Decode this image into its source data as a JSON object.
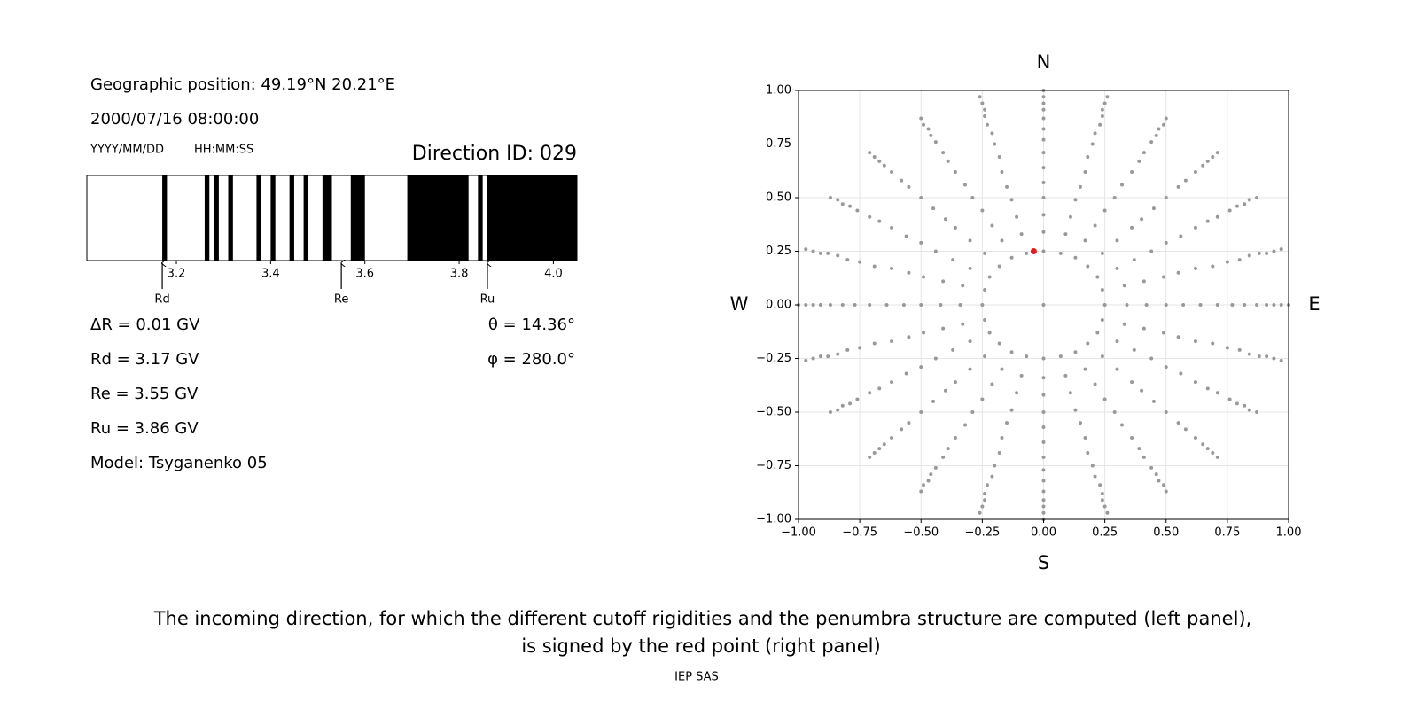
{
  "info": {
    "position": "Geographic position: 49.19°N 20.21°E",
    "datetime": "2000/07/16 08:00:00",
    "date_format": "YYYY/MM/DD",
    "time_format": "HH:MM:SS",
    "direction": "Direction ID: 029",
    "delta_r": "ΔR = 0.01 GV",
    "rd": "Rd = 3.17 GV",
    "re": "Re = 3.55 GV",
    "ru": "Ru = 3.86 GV",
    "model": "Model: Tsyganenko 05",
    "theta": "θ = 14.36°",
    "phi": "φ = 280.0°"
  },
  "chart_data": [
    {
      "type": "penumbra",
      "xlim": [
        3.01,
        4.05
      ],
      "xticks": [
        3.2,
        3.4,
        3.6,
        3.8,
        {
          "value": 4.0,
          "label": "4.0"
        }
      ],
      "band_color": "#000000",
      "bands": [
        [
          3.17,
          3.18
        ],
        [
          3.26,
          3.27
        ],
        [
          3.28,
          3.29
        ],
        [
          3.31,
          3.32
        ],
        [
          3.37,
          3.38
        ],
        [
          3.4,
          3.41
        ],
        [
          3.44,
          3.45
        ],
        [
          3.47,
          3.48
        ],
        [
          3.51,
          3.53
        ],
        [
          3.57,
          3.6
        ],
        [
          3.69,
          3.82
        ],
        [
          3.84,
          3.85
        ],
        [
          3.86,
          4.05
        ]
      ],
      "markers": [
        {
          "label": "Rd",
          "value": 3.17
        },
        {
          "label": "Re",
          "value": 3.55
        },
        {
          "label": "Ru",
          "value": 3.86
        }
      ]
    },
    {
      "type": "scatter",
      "xlim": [
        -1,
        1
      ],
      "ylim": [
        -1,
        1
      ],
      "grid": true,
      "xticks": [
        {
          "value": -1,
          "label": "−1.00"
        },
        {
          "value": -0.75,
          "label": "−0.75"
        },
        {
          "value": -0.5,
          "label": "−0.50"
        },
        {
          "value": -0.25,
          "label": "−0.25"
        },
        {
          "value": 0,
          "label": "0.00"
        },
        {
          "value": 0.25,
          "label": "0.25"
        },
        {
          "value": 0.5,
          "label": "0.50"
        },
        {
          "value": 0.75,
          "label": "0.75"
        },
        {
          "value": 1,
          "label": "1.00"
        }
      ],
      "yticks": [
        {
          "value": -1,
          "label": "−1.00"
        },
        {
          "value": -0.75,
          "label": "−0.75"
        },
        {
          "value": -0.5,
          "label": "−0.50"
        },
        {
          "value": -0.25,
          "label": "−0.25"
        },
        {
          "value": 0,
          "label": "0.00"
        },
        {
          "value": 0.25,
          "label": "0.25"
        },
        {
          "value": 0.5,
          "label": "0.50"
        },
        {
          "value": 0.75,
          "label": "0.75"
        },
        {
          "value": 1,
          "label": "1.00"
        }
      ],
      "compass": {
        "north": "N",
        "south": "S",
        "west": "W",
        "east": "E"
      },
      "point_color": "#999999",
      "highlight": {
        "x": -0.04,
        "y": 0.25,
        "color": "#e8191c"
      },
      "series": [
        {
          "x": [
            0
          ],
          "y": [
            0
          ]
        },
        {
          "x": [
            0,
            0,
            0,
            0,
            0,
            0,
            0,
            0,
            0,
            0,
            0,
            0,
            0,
            0
          ],
          "y": [
            0.25,
            0.34,
            0.42,
            0.5,
            0.57,
            0.64,
            0.71,
            0.77,
            0.82,
            0.87,
            0.91,
            0.94,
            0.97,
            1
          ]
        },
        {
          "x": [
            0.07,
            0.09,
            0.11,
            0.13,
            0.15,
            0.17,
            0.18,
            0.2,
            0.21,
            0.23,
            0.24,
            0.24,
            0.25,
            0.26
          ],
          "y": [
            0.24,
            0.33,
            0.41,
            0.49,
            0.55,
            0.62,
            0.69,
            0.75,
            0.8,
            0.84,
            0.88,
            0.91,
            0.94,
            0.97
          ]
        },
        {
          "x": [
            0.13,
            0.17,
            0.21,
            0.25,
            0.29,
            0.32,
            0.36,
            0.39,
            0.41,
            0.44,
            0.46,
            0.47,
            0.49,
            0.5
          ],
          "y": [
            0.22,
            0.3,
            0.37,
            0.44,
            0.5,
            0.56,
            0.62,
            0.67,
            0.71,
            0.76,
            0.79,
            0.82,
            0.84,
            0.87
          ]
        },
        {
          "x": [
            0.18,
            0.24,
            0.3,
            0.36,
            0.4,
            0.45,
            0.5,
            0.55,
            0.58,
            0.62,
            0.65,
            0.67,
            0.69,
            0.71
          ],
          "y": [
            0.18,
            0.24,
            0.3,
            0.36,
            0.4,
            0.45,
            0.5,
            0.55,
            0.58,
            0.62,
            0.65,
            0.67,
            0.69,
            0.71
          ]
        },
        {
          "x": [
            0.22,
            0.3,
            0.37,
            0.44,
            0.5,
            0.56,
            0.62,
            0.67,
            0.71,
            0.76,
            0.79,
            0.82,
            0.84,
            0.87
          ],
          "y": [
            0.13,
            0.17,
            0.21,
            0.25,
            0.29,
            0.32,
            0.36,
            0.39,
            0.41,
            0.44,
            0.46,
            0.47,
            0.49,
            0.5
          ]
        },
        {
          "x": [
            0.24,
            0.33,
            0.41,
            0.49,
            0.55,
            0.62,
            0.69,
            0.75,
            0.8,
            0.84,
            0.88,
            0.91,
            0.94,
            0.97
          ],
          "y": [
            0.07,
            0.09,
            0.11,
            0.13,
            0.15,
            0.17,
            0.18,
            0.2,
            0.21,
            0.23,
            0.24,
            0.24,
            0.25,
            0.26
          ]
        },
        {
          "x": [
            0.25,
            0.34,
            0.42,
            0.5,
            0.57,
            0.64,
            0.71,
            0.77,
            0.82,
            0.87,
            0.91,
            0.94,
            0.97,
            1
          ],
          "y": [
            0,
            0,
            0,
            0,
            0,
            0,
            0,
            0,
            0,
            0,
            0,
            0,
            0,
            0
          ]
        },
        {
          "x": [
            0.24,
            0.33,
            0.41,
            0.49,
            0.55,
            0.62,
            0.69,
            0.75,
            0.8,
            0.84,
            0.88,
            0.91,
            0.94,
            0.97
          ],
          "y": [
            -0.07,
            -0.09,
            -0.11,
            -0.13,
            -0.15,
            -0.17,
            -0.18,
            -0.2,
            -0.21,
            -0.23,
            -0.24,
            -0.24,
            -0.25,
            -0.26
          ]
        },
        {
          "x": [
            0.22,
            0.3,
            0.37,
            0.44,
            0.5,
            0.56,
            0.62,
            0.67,
            0.71,
            0.76,
            0.79,
            0.82,
            0.84,
            0.87
          ],
          "y": [
            -0.13,
            -0.17,
            -0.21,
            -0.25,
            -0.29,
            -0.32,
            -0.36,
            -0.39,
            -0.41,
            -0.44,
            -0.46,
            -0.47,
            -0.49,
            -0.5
          ]
        },
        {
          "x": [
            0.18,
            0.24,
            0.3,
            0.36,
            0.4,
            0.45,
            0.5,
            0.55,
            0.58,
            0.62,
            0.65,
            0.67,
            0.69,
            0.71
          ],
          "y": [
            -0.18,
            -0.24,
            -0.3,
            -0.36,
            -0.4,
            -0.45,
            -0.5,
            -0.55,
            -0.58,
            -0.62,
            -0.65,
            -0.67,
            -0.69,
            -0.71
          ]
        },
        {
          "x": [
            0.13,
            0.17,
            0.21,
            0.25,
            0.29,
            0.32,
            0.36,
            0.39,
            0.41,
            0.44,
            0.46,
            0.47,
            0.49,
            0.5
          ],
          "y": [
            -0.22,
            -0.3,
            -0.37,
            -0.44,
            -0.5,
            -0.56,
            -0.62,
            -0.67,
            -0.71,
            -0.76,
            -0.79,
            -0.82,
            -0.84,
            -0.87
          ]
        },
        {
          "x": [
            0.07,
            0.09,
            0.11,
            0.13,
            0.15,
            0.17,
            0.18,
            0.2,
            0.21,
            0.23,
            0.24,
            0.24,
            0.25,
            0.26
          ],
          "y": [
            -0.24,
            -0.33,
            -0.41,
            -0.49,
            -0.55,
            -0.62,
            -0.69,
            -0.75,
            -0.8,
            -0.84,
            -0.88,
            -0.91,
            -0.94,
            -0.97
          ]
        },
        {
          "x": [
            0,
            0,
            0,
            0,
            0,
            0,
            0,
            0,
            0,
            0,
            0,
            0,
            0,
            0
          ],
          "y": [
            -0.25,
            -0.34,
            -0.42,
            -0.5,
            -0.57,
            -0.64,
            -0.71,
            -0.77,
            -0.82,
            -0.87,
            -0.91,
            -0.94,
            -0.97,
            -1
          ]
        },
        {
          "x": [
            -0.07,
            -0.09,
            -0.11,
            -0.13,
            -0.15,
            -0.17,
            -0.18,
            -0.2,
            -0.21,
            -0.23,
            -0.24,
            -0.24,
            -0.25,
            -0.26
          ],
          "y": [
            -0.24,
            -0.33,
            -0.41,
            -0.49,
            -0.55,
            -0.62,
            -0.69,
            -0.75,
            -0.8,
            -0.84,
            -0.88,
            -0.91,
            -0.94,
            -0.97
          ]
        },
        {
          "x": [
            -0.13,
            -0.17,
            -0.21,
            -0.25,
            -0.29,
            -0.32,
            -0.36,
            -0.39,
            -0.41,
            -0.44,
            -0.46,
            -0.47,
            -0.49,
            -0.5
          ],
          "y": [
            -0.22,
            -0.3,
            -0.37,
            -0.44,
            -0.5,
            -0.56,
            -0.62,
            -0.67,
            -0.71,
            -0.76,
            -0.79,
            -0.82,
            -0.84,
            -0.87
          ]
        },
        {
          "x": [
            -0.18,
            -0.24,
            -0.3,
            -0.36,
            -0.4,
            -0.45,
            -0.5,
            -0.55,
            -0.58,
            -0.62,
            -0.65,
            -0.67,
            -0.69,
            -0.71
          ],
          "y": [
            -0.18,
            -0.24,
            -0.3,
            -0.36,
            -0.4,
            -0.45,
            -0.5,
            -0.55,
            -0.58,
            -0.62,
            -0.65,
            -0.67,
            -0.69,
            -0.71
          ]
        },
        {
          "x": [
            -0.22,
            -0.3,
            -0.37,
            -0.44,
            -0.5,
            -0.56,
            -0.62,
            -0.67,
            -0.71,
            -0.76,
            -0.79,
            -0.82,
            -0.84,
            -0.87
          ],
          "y": [
            -0.13,
            -0.17,
            -0.21,
            -0.25,
            -0.29,
            -0.32,
            -0.36,
            -0.39,
            -0.41,
            -0.44,
            -0.46,
            -0.47,
            -0.49,
            -0.5
          ]
        },
        {
          "x": [
            -0.24,
            -0.33,
            -0.41,
            -0.49,
            -0.55,
            -0.62,
            -0.69,
            -0.75,
            -0.8,
            -0.84,
            -0.88,
            -0.91,
            -0.94,
            -0.97
          ],
          "y": [
            -0.07,
            -0.09,
            -0.11,
            -0.13,
            -0.15,
            -0.17,
            -0.18,
            -0.2,
            -0.21,
            -0.23,
            -0.24,
            -0.24,
            -0.25,
            -0.26
          ]
        },
        {
          "x": [
            -0.25,
            -0.34,
            -0.42,
            -0.5,
            -0.57,
            -0.64,
            -0.71,
            -0.77,
            -0.82,
            -0.87,
            -0.91,
            -0.94,
            -0.97,
            -1
          ],
          "y": [
            0,
            0,
            0,
            0,
            0,
            0,
            0,
            0,
            0,
            0,
            0,
            0,
            0,
            0
          ]
        },
        {
          "x": [
            -0.24,
            -0.33,
            -0.41,
            -0.49,
            -0.55,
            -0.62,
            -0.69,
            -0.75,
            -0.8,
            -0.84,
            -0.88,
            -0.91,
            -0.94,
            -0.97
          ],
          "y": [
            0.07,
            0.09,
            0.11,
            0.13,
            0.15,
            0.17,
            0.18,
            0.2,
            0.21,
            0.23,
            0.24,
            0.24,
            0.25,
            0.26
          ]
        },
        {
          "x": [
            -0.22,
            -0.3,
            -0.37,
            -0.44,
            -0.5,
            -0.56,
            -0.62,
            -0.67,
            -0.71,
            -0.76,
            -0.79,
            -0.82,
            -0.84,
            -0.87
          ],
          "y": [
            0.13,
            0.17,
            0.21,
            0.25,
            0.29,
            0.32,
            0.36,
            0.39,
            0.41,
            0.44,
            0.46,
            0.47,
            0.49,
            0.5
          ]
        },
        {
          "x": [
            -0.18,
            -0.24,
            -0.3,
            -0.36,
            -0.4,
            -0.45,
            -0.5,
            -0.55,
            -0.58,
            -0.62,
            -0.65,
            -0.67,
            -0.69,
            -0.71
          ],
          "y": [
            0.18,
            0.24,
            0.3,
            0.36,
            0.4,
            0.45,
            0.5,
            0.55,
            0.58,
            0.62,
            0.65,
            0.67,
            0.69,
            0.71
          ]
        },
        {
          "x": [
            -0.13,
            -0.17,
            -0.21,
            -0.25,
            -0.29,
            -0.32,
            -0.36,
            -0.39,
            -0.41,
            -0.44,
            -0.46,
            -0.47,
            -0.49,
            -0.5
          ],
          "y": [
            0.22,
            0.3,
            0.37,
            0.44,
            0.5,
            0.56,
            0.62,
            0.67,
            0.71,
            0.76,
            0.79,
            0.82,
            0.84,
            0.87
          ]
        },
        {
          "x": [
            -0.07,
            -0.09,
            -0.11,
            -0.13,
            -0.15,
            -0.17,
            -0.18,
            -0.2,
            -0.21,
            -0.23,
            -0.24,
            -0.24,
            -0.25,
            -0.26
          ],
          "y": [
            0.24,
            0.33,
            0.41,
            0.49,
            0.55,
            0.62,
            0.69,
            0.75,
            0.8,
            0.84,
            0.88,
            0.91,
            0.94,
            0.97
          ]
        }
      ]
    }
  ],
  "caption": [
    "The incoming direction, for which the different cutoff rigidities and the penumbra structure are computed (left panel),",
    "is signed by the red point (right panel)"
  ],
  "credit": "IEP SAS"
}
